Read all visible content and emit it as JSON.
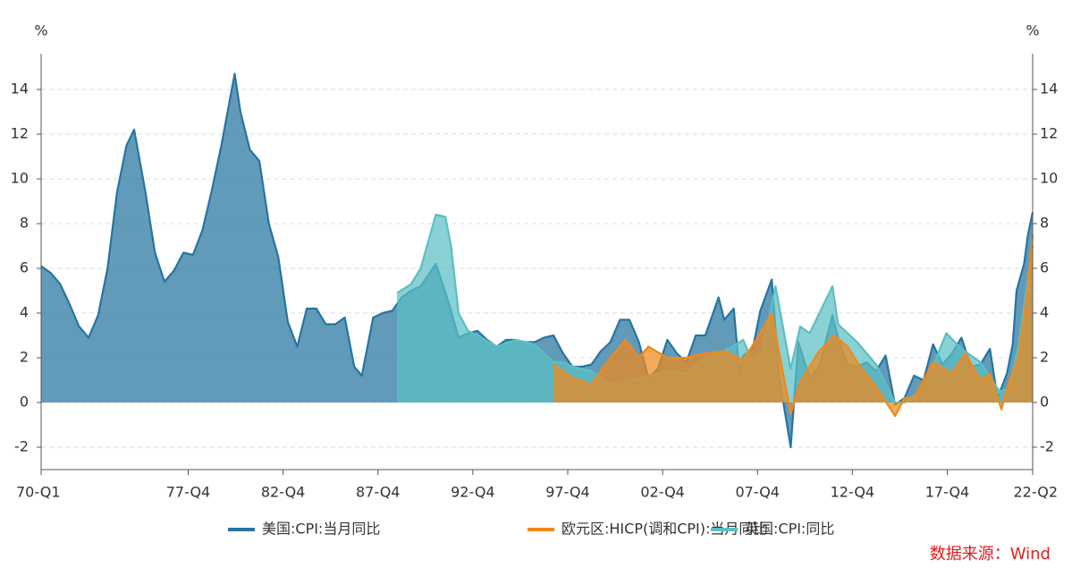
{
  "chart_data": {
    "type": "area",
    "y_unit": "%",
    "source": "数据来源：Wind",
    "xlim": [
      1970,
      2022.25
    ],
    "xticks": [
      {
        "value": 1970,
        "label": "70-Q1"
      },
      {
        "value": 1977.75,
        "label": "77-Q4"
      },
      {
        "value": 1982.75,
        "label": "82-Q4"
      },
      {
        "value": 1987.75,
        "label": "87-Q4"
      },
      {
        "value": 1992.75,
        "label": "92-Q4"
      },
      {
        "value": 1997.75,
        "label": "97-Q4"
      },
      {
        "value": 2002.75,
        "label": "02-Q4"
      },
      {
        "value": 2007.75,
        "label": "07-Q4"
      },
      {
        "value": 2012.75,
        "label": "12-Q4"
      },
      {
        "value": 2017.75,
        "label": "17-Q4"
      },
      {
        "value": 2022.25,
        "label": "22-Q2"
      }
    ],
    "ylim": [
      -3,
      15.6
    ],
    "yticks": [
      -2,
      0,
      2,
      4,
      6,
      8,
      10,
      12,
      14
    ],
    "y2lim": [
      -3,
      15.6
    ],
    "y2ticks": [
      -2,
      0,
      2,
      4,
      6,
      8,
      10,
      12,
      14
    ],
    "grid": true,
    "series": [
      {
        "name": "美国:CPI:当月同比",
        "color": "#2675a0",
        "x": [
          1970,
          1970.5,
          1971,
          1971.5,
          1972,
          1972.5,
          1973,
          1973.5,
          1974,
          1974.5,
          1974.9,
          1975.5,
          1976,
          1976.5,
          1977,
          1977.5,
          1978,
          1978.5,
          1979,
          1979.5,
          1980.2,
          1980.5,
          1981,
          1981.5,
          1982,
          1982.5,
          1983,
          1983.5,
          1984,
          1984.5,
          1985,
          1985.5,
          1986,
          1986.5,
          1986.9,
          1987.5,
          1988,
          1988.5,
          1989,
          1989.5,
          1990,
          1990.8,
          1991,
          1991.5,
          1992,
          1992.5,
          1993,
          1993.5,
          1994,
          1994.5,
          1995,
          1995.5,
          1996,
          1996.5,
          1997,
          1997.5,
          1998,
          1998.5,
          1999,
          1999.5,
          2000,
          2000.5,
          2001,
          2001.5,
          2002,
          2002.5,
          2003,
          2003.5,
          2004,
          2004.5,
          2005,
          2005.7,
          2006,
          2006.5,
          2006.8,
          2007,
          2007.5,
          2007.9,
          2008.5,
          2008.9,
          2009.5,
          2009.9,
          2010.5,
          2011,
          2011.7,
          2012,
          2012.5,
          2013,
          2013.5,
          2014,
          2014.5,
          2015,
          2015.5,
          2016,
          2016.5,
          2017,
          2017.5,
          2018,
          2018.5,
          2019,
          2019.5,
          2020,
          2020.4,
          2020.9,
          2021.2,
          2021.4,
          2021.8,
          2022,
          2022.25
        ],
        "values": [
          6.1,
          5.8,
          5.3,
          4.4,
          3.4,
          2.9,
          3.9,
          6.0,
          9.4,
          11.5,
          12.2,
          9.4,
          6.7,
          5.4,
          5.9,
          6.7,
          6.6,
          7.7,
          9.5,
          11.5,
          14.7,
          13.0,
          11.3,
          10.8,
          8.0,
          6.5,
          3.6,
          2.5,
          4.2,
          4.2,
          3.5,
          3.5,
          3.8,
          1.6,
          1.2,
          3.8,
          4.0,
          4.1,
          4.7,
          5.0,
          5.2,
          6.2,
          5.7,
          4.4,
          2.9,
          3.1,
          3.2,
          2.8,
          2.5,
          2.8,
          2.8,
          2.7,
          2.7,
          2.9,
          3.0,
          2.2,
          1.6,
          1.6,
          1.7,
          2.3,
          2.7,
          3.7,
          3.7,
          2.7,
          1.1,
          1.5,
          2.8,
          2.2,
          1.8,
          3.0,
          3.0,
          4.7,
          3.7,
          4.2,
          1.3,
          2.1,
          2.4,
          4.1,
          5.5,
          1.1,
          -2.0,
          2.7,
          1.1,
          1.6,
          3.9,
          2.9,
          1.7,
          1.6,
          1.8,
          1.4,
          2.1,
          -0.1,
          0.2,
          1.2,
          1.0,
          2.6,
          1.7,
          2.2,
          2.9,
          1.6,
          1.7,
          2.4,
          0.2,
          1.3,
          2.6,
          5.0,
          6.2,
          7.5,
          8.5
        ]
      },
      {
        "name": "英国:CPI:同比",
        "color": "#5bbfc3",
        "x": [
          1988.75,
          1989.5,
          1990,
          1990.5,
          1990.8,
          1991.3,
          1991.6,
          1992,
          1992.5,
          1993,
          1994,
          1995,
          1996,
          1996.5,
          1997,
          1997.5,
          1998,
          1999,
          2000,
          2001,
          2002,
          2003,
          2004,
          2005,
          2006,
          2007,
          2007.5,
          2008,
          2008.7,
          2009.5,
          2010,
          2010.5,
          2011.7,
          2012,
          2013,
          2014,
          2015,
          2015.5,
          2016.5,
          2017.7,
          2018.5,
          2019.5,
          2020.5,
          2021,
          2021.5,
          2022,
          2022.25
        ],
        "values": [
          4.9,
          5.3,
          6.0,
          7.5,
          8.4,
          8.3,
          7.0,
          4.0,
          3.2,
          3.0,
          2.5,
          2.8,
          2.6,
          2.2,
          1.8,
          1.8,
          1.6,
          1.4,
          0.8,
          1.0,
          1.2,
          1.4,
          1.3,
          2.0,
          2.3,
          2.8,
          1.8,
          2.3,
          5.2,
          1.5,
          3.4,
          3.1,
          5.2,
          3.5,
          2.7,
          1.7,
          0.0,
          0.0,
          0.6,
          3.1,
          2.4,
          1.8,
          0.5,
          0.6,
          2.5,
          5.5,
          7.0
        ]
      },
      {
        "name": "欧元区:HICP(调和CPI):当月同比",
        "color": "#f0891c",
        "x": [
          1997,
          1998,
          1999,
          2000,
          2000.8,
          2001.5,
          2002,
          2003,
          2004,
          2005,
          2006,
          2007,
          2007.9,
          2008.5,
          2009.5,
          2010,
          2011,
          2011.8,
          2012.5,
          2013,
          2014,
          2015,
          2015.5,
          2016,
          2017,
          2018,
          2018.7,
          2019.5,
          2020,
          2020.6,
          2021,
          2021.5,
          2022,
          2022.25
        ],
        "values": [
          1.7,
          1.1,
          0.8,
          2.0,
          2.8,
          2.0,
          2.5,
          2.0,
          2.0,
          2.2,
          2.3,
          1.9,
          3.1,
          4.0,
          -0.5,
          0.9,
          2.3,
          3.0,
          2.5,
          1.8,
          0.7,
          -0.6,
          0.2,
          0.2,
          1.8,
          1.3,
          2.2,
          1.0,
          1.3,
          -0.3,
          0.9,
          2.0,
          5.1,
          7.5
        ]
      }
    ]
  }
}
